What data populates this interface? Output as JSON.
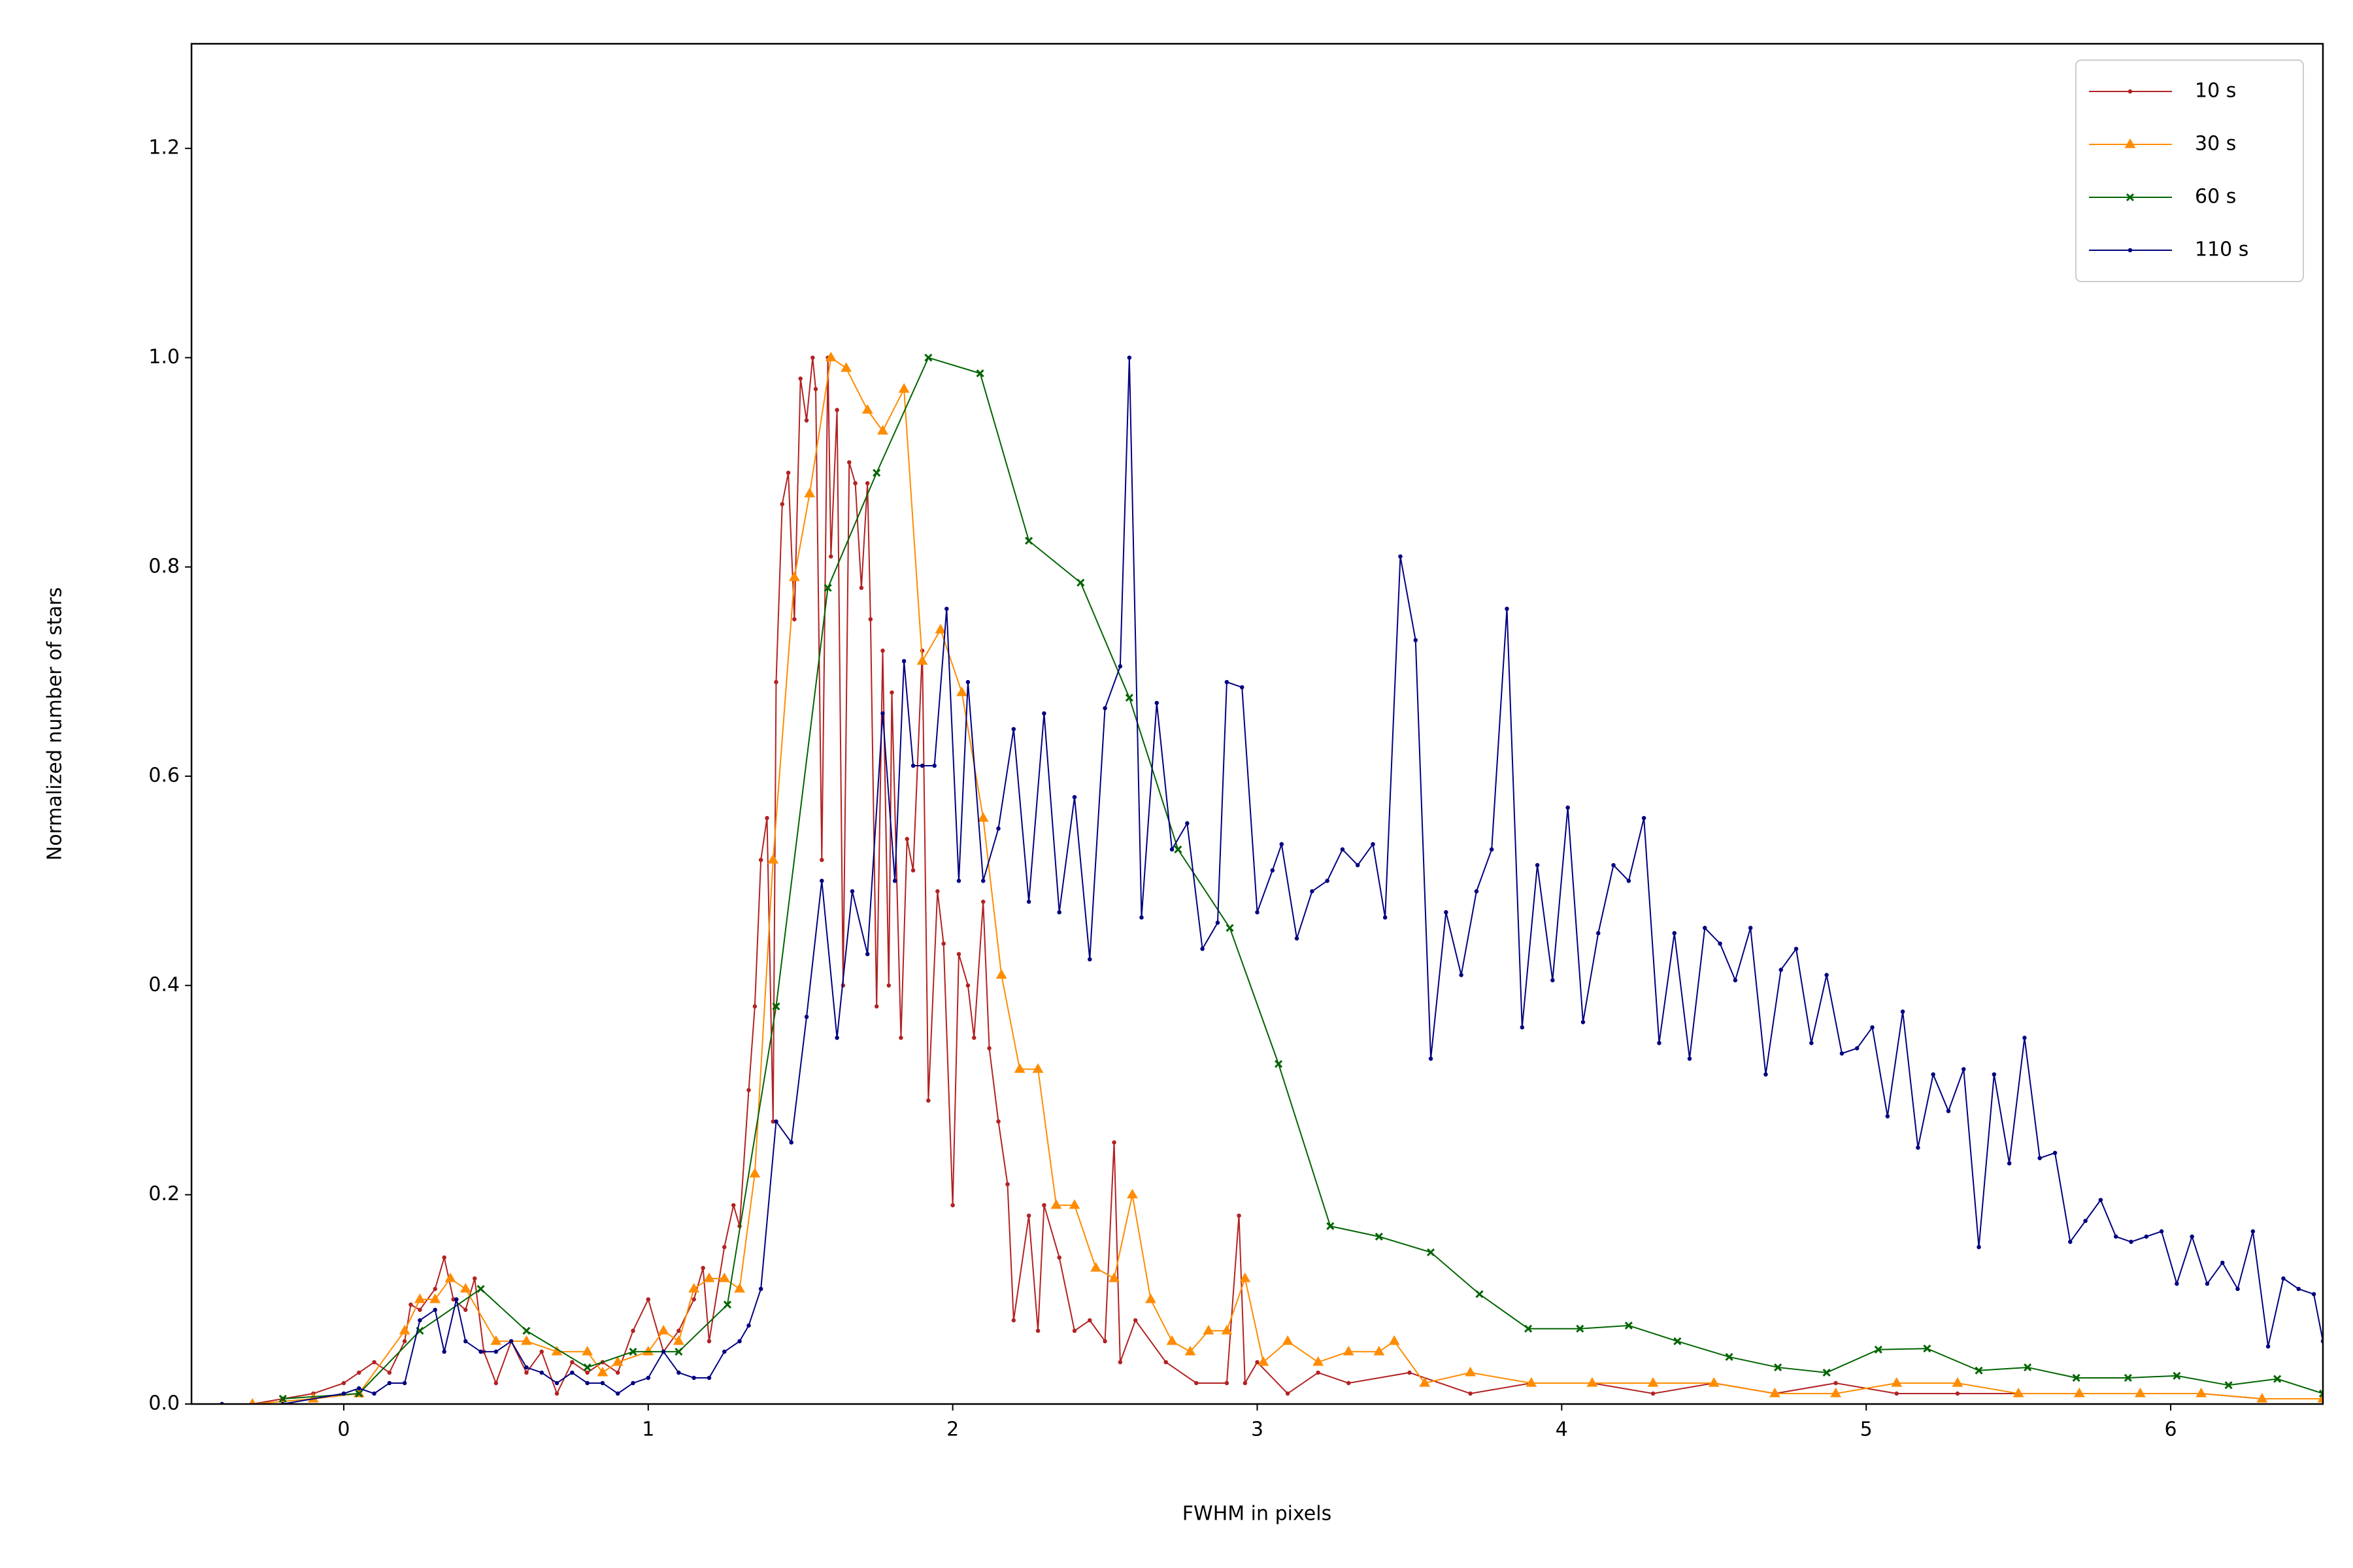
{
  "chart_data": {
    "type": "line",
    "xlabel": "FWHM in pixels",
    "ylabel": "Normalized number of stars",
    "xlim": [
      -0.5,
      6.5
    ],
    "ylim": [
      0,
      1.3
    ],
    "xticks": [
      0,
      1,
      2,
      3,
      4,
      5,
      6
    ],
    "yticks": [
      {
        "value": 0,
        "label": "0.0"
      },
      {
        "value": 0.2,
        "label": "0.2"
      },
      {
        "value": 0.4,
        "label": "0.4"
      },
      {
        "value": 0.6,
        "label": "0.6"
      },
      {
        "value": 0.8,
        "label": "0.8"
      },
      {
        "value": 1.0,
        "label": "1.0"
      },
      {
        "value": 1.2,
        "label": "1.2"
      }
    ],
    "grid": false,
    "legend": "upper right",
    "series": [
      {
        "name": "10 s",
        "color": "#b22222",
        "marker": "o",
        "x": [
          -0.4,
          -0.3,
          -0.2,
          -0.1,
          0,
          0.05,
          0.1,
          0.15,
          0.2,
          0.22,
          0.25,
          0.3,
          0.33,
          0.36,
          0.4,
          0.43,
          0.46,
          0.5,
          0.55,
          0.6,
          0.65,
          0.7,
          0.75,
          0.8,
          0.85,
          0.9,
          0.95,
          1.0,
          1.05,
          1.1,
          1.15,
          1.18,
          1.2,
          1.25,
          1.28,
          1.3,
          1.33,
          1.35,
          1.37,
          1.39,
          1.41,
          1.42,
          1.44,
          1.46,
          1.48,
          1.5,
          1.52,
          1.54,
          1.55,
          1.57,
          1.59,
          1.6,
          1.62,
          1.64,
          1.66,
          1.68,
          1.7,
          1.72,
          1.73,
          1.75,
          1.77,
          1.79,
          1.8,
          1.83,
          1.85,
          1.87,
          1.9,
          1.92,
          1.95,
          1.97,
          2.0,
          2.02,
          2.05,
          2.07,
          2.1,
          2.12,
          2.15,
          2.18,
          2.2,
          2.25,
          2.28,
          2.3,
          2.35,
          2.4,
          2.45,
          2.5,
          2.53,
          2.55,
          2.6,
          2.7,
          2.8,
          2.9,
          2.94,
          2.96,
          3.0,
          3.1,
          3.2,
          3.3,
          3.5,
          3.7,
          3.9,
          4.1,
          4.3,
          4.5,
          4.7,
          4.9,
          5.1,
          5.3,
          5.5,
          5.7,
          5.9,
          6.1,
          6.3,
          6.5
        ],
        "values": [
          0,
          0,
          0.005,
          0.01,
          0.02,
          0.03,
          0.04,
          0.03,
          0.06,
          0.095,
          0.09,
          0.11,
          0.14,
          0.1,
          0.09,
          0.12,
          0.05,
          0.02,
          0.06,
          0.03,
          0.05,
          0.01,
          0.04,
          0.03,
          0.04,
          0.03,
          0.07,
          0.1,
          0.05,
          0.07,
          0.1,
          0.13,
          0.06,
          0.15,
          0.19,
          0.17,
          0.3,
          0.38,
          0.52,
          0.56,
          0.27,
          0.69,
          0.86,
          0.89,
          0.75,
          0.98,
          0.94,
          1.0,
          0.97,
          0.52,
          1.0,
          0.81,
          0.95,
          0.4,
          0.9,
          0.88,
          0.78,
          0.88,
          0.75,
          0.38,
          0.72,
          0.4,
          0.68,
          0.35,
          0.54,
          0.51,
          0.72,
          0.29,
          0.49,
          0.44,
          0.19,
          0.43,
          0.4,
          0.35,
          0.48,
          0.34,
          0.27,
          0.21,
          0.08,
          0.18,
          0.07,
          0.19,
          0.14,
          0.07,
          0.08,
          0.06,
          0.25,
          0.04,
          0.08,
          0.04,
          0.02,
          0.02,
          0.18,
          0.02,
          0.04,
          0.01,
          0.03,
          0.02,
          0.03,
          0.01,
          0.02,
          0.02,
          0.01,
          0.02,
          0.01,
          0.02,
          0.01,
          0.01,
          0.01,
          0.01,
          0.01,
          0.01,
          0.005,
          0.005
        ]
      },
      {
        "name": "30 s",
        "color": "#ff8c00",
        "marker": "^",
        "x": [
          -0.3,
          -0.1,
          0.05,
          0.2,
          0.25,
          0.3,
          0.35,
          0.4,
          0.5,
          0.6,
          0.7,
          0.8,
          0.85,
          0.9,
          1.0,
          1.05,
          1.1,
          1.15,
          1.2,
          1.25,
          1.3,
          1.35,
          1.41,
          1.48,
          1.53,
          1.6,
          1.65,
          1.72,
          1.77,
          1.84,
          1.9,
          1.96,
          2.03,
          2.1,
          2.16,
          2.22,
          2.28,
          2.34,
          2.4,
          2.47,
          2.53,
          2.59,
          2.65,
          2.72,
          2.78,
          2.84,
          2.9,
          2.96,
          3.02,
          3.1,
          3.2,
          3.3,
          3.4,
          3.45,
          3.55,
          3.7,
          3.9,
          4.1,
          4.3,
          4.5,
          4.7,
          4.9,
          5.1,
          5.3,
          5.5,
          5.7,
          5.9,
          6.1,
          6.3,
          6.5
        ],
        "values": [
          0,
          0.005,
          0.01,
          0.07,
          0.1,
          0.1,
          0.12,
          0.11,
          0.06,
          0.06,
          0.05,
          0.05,
          0.03,
          0.04,
          0.05,
          0.07,
          0.06,
          0.11,
          0.12,
          0.12,
          0.11,
          0.22,
          0.52,
          0.79,
          0.87,
          1.0,
          0.99,
          0.95,
          0.93,
          0.97,
          0.71,
          0.74,
          0.68,
          0.56,
          0.41,
          0.32,
          0.32,
          0.19,
          0.19,
          0.13,
          0.12,
          0.2,
          0.1,
          0.06,
          0.05,
          0.07,
          0.07,
          0.12,
          0.04,
          0.06,
          0.04,
          0.05,
          0.05,
          0.06,
          0.02,
          0.03,
          0.02,
          0.02,
          0.02,
          0.02,
          0.01,
          0.01,
          0.02,
          0.02,
          0.01,
          0.01,
          0.01,
          0.01,
          0.005,
          0.005
        ]
      },
      {
        "name": "60 s",
        "color": "#006400",
        "marker": "x",
        "x": [
          -0.2,
          0.05,
          0.25,
          0.45,
          0.6,
          0.8,
          0.95,
          1.1,
          1.26,
          1.42,
          1.59,
          1.75,
          1.92,
          2.09,
          2.25,
          2.42,
          2.58,
          2.74,
          2.91,
          3.07,
          3.24,
          3.4,
          3.57,
          3.73,
          3.89,
          4.06,
          4.22,
          4.38,
          4.55,
          4.71,
          4.87,
          5.04,
          5.2,
          5.37,
          5.53,
          5.69,
          5.86,
          6.02,
          6.19,
          6.35,
          6.5
        ],
        "values": [
          0.005,
          0.01,
          0.07,
          0.11,
          0.07,
          0.035,
          0.05,
          0.05,
          0.095,
          0.38,
          0.78,
          0.89,
          1.0,
          0.985,
          0.825,
          0.785,
          0.675,
          0.53,
          0.455,
          0.325,
          0.17,
          0.16,
          0.145,
          0.105,
          0.072,
          0.072,
          0.075,
          0.06,
          0.045,
          0.035,
          0.03,
          0.052,
          0.053,
          0.032,
          0.035,
          0.025,
          0.025,
          0.027,
          0.018,
          0.024,
          0.01
        ]
      },
      {
        "name": "110 s",
        "color": "#000080",
        "marker": "o",
        "x": [
          -0.4,
          -0.2,
          0,
          0.05,
          0.1,
          0.15,
          0.2,
          0.25,
          0.3,
          0.33,
          0.37,
          0.4,
          0.45,
          0.5,
          0.55,
          0.6,
          0.65,
          0.7,
          0.75,
          0.8,
          0.85,
          0.9,
          0.95,
          1.0,
          1.05,
          1.1,
          1.15,
          1.2,
          1.25,
          1.3,
          1.33,
          1.37,
          1.42,
          1.47,
          1.52,
          1.57,
          1.62,
          1.67,
          1.72,
          1.77,
          1.81,
          1.84,
          1.87,
          1.9,
          1.94,
          1.98,
          2.02,
          2.05,
          2.1,
          2.15,
          2.2,
          2.25,
          2.3,
          2.35,
          2.4,
          2.45,
          2.5,
          2.55,
          2.58,
          2.62,
          2.67,
          2.72,
          2.77,
          2.82,
          2.87,
          2.9,
          2.95,
          3.0,
          3.05,
          3.08,
          3.13,
          3.18,
          3.23,
          3.28,
          3.33,
          3.38,
          3.42,
          3.47,
          3.52,
          3.57,
          3.62,
          3.67,
          3.72,
          3.77,
          3.82,
          3.87,
          3.92,
          3.97,
          4.02,
          4.07,
          4.12,
          4.17,
          4.22,
          4.27,
          4.32,
          4.37,
          4.42,
          4.47,
          4.52,
          4.57,
          4.62,
          4.67,
          4.72,
          4.77,
          4.82,
          4.87,
          4.92,
          4.97,
          5.02,
          5.07,
          5.12,
          5.17,
          5.22,
          5.27,
          5.32,
          5.37,
          5.42,
          5.47,
          5.52,
          5.57,
          5.62,
          5.67,
          5.72,
          5.77,
          5.82,
          5.87,
          5.92,
          5.97,
          6.02,
          6.07,
          6.12,
          6.17,
          6.22,
          6.27,
          6.32,
          6.37,
          6.42,
          6.47,
          6.5
        ],
        "values": [
          0,
          0,
          0.01,
          0.015,
          0.01,
          0.02,
          0.02,
          0.08,
          0.09,
          0.05,
          0.1,
          0.06,
          0.05,
          0.05,
          0.06,
          0.035,
          0.03,
          0.02,
          0.03,
          0.02,
          0.02,
          0.01,
          0.02,
          0.025,
          0.05,
          0.03,
          0.025,
          0.025,
          0.05,
          0.06,
          0.075,
          0.11,
          0.27,
          0.25,
          0.37,
          0.5,
          0.35,
          0.49,
          0.43,
          0.66,
          0.5,
          0.71,
          0.61,
          0.61,
          0.61,
          0.76,
          0.5,
          0.69,
          0.5,
          0.55,
          0.645,
          0.48,
          0.66,
          0.47,
          0.58,
          0.425,
          0.665,
          0.705,
          1.0,
          0.465,
          0.67,
          0.53,
          0.555,
          0.435,
          0.46,
          0.69,
          0.685,
          0.47,
          0.51,
          0.535,
          0.445,
          0.49,
          0.5,
          0.53,
          0.515,
          0.535,
          0.465,
          0.81,
          0.73,
          0.33,
          0.47,
          0.41,
          0.49,
          0.53,
          0.76,
          0.36,
          0.515,
          0.405,
          0.57,
          0.365,
          0.45,
          0.515,
          0.5,
          0.56,
          0.345,
          0.45,
          0.33,
          0.455,
          0.44,
          0.405,
          0.455,
          0.315,
          0.415,
          0.435,
          0.345,
          0.41,
          0.335,
          0.34,
          0.36,
          0.275,
          0.375,
          0.245,
          0.315,
          0.28,
          0.32,
          0.15,
          0.315,
          0.23,
          0.35,
          0.235,
          0.24,
          0.155,
          0.175,
          0.195,
          0.16,
          0.155,
          0.16,
          0.165,
          0.115,
          0.16,
          0.115,
          0.135,
          0.11,
          0.165,
          0.055,
          0.12,
          0.11,
          0.105,
          0.06
        ]
      }
    ]
  }
}
